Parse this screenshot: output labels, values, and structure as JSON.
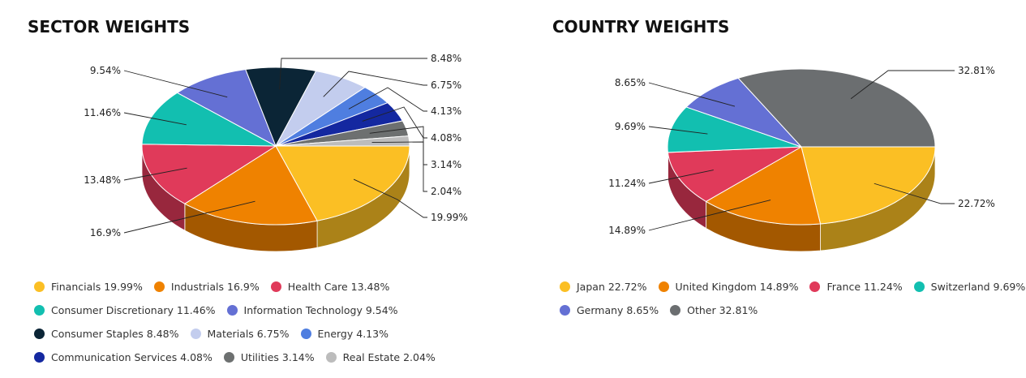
{
  "chart_data": [
    {
      "type": "pie",
      "title": "SECTOR WEIGHTS",
      "slices": [
        {
          "name": "Financials",
          "value": 19.99,
          "label": "19.99%",
          "legend": "Financials 19.99%",
          "color": "#fbbf24"
        },
        {
          "name": "Industrials",
          "value": 16.9,
          "label": "16.9%",
          "legend": "Industrials 16.9%",
          "color": "#ef8200"
        },
        {
          "name": "Health Care",
          "value": 13.48,
          "label": "13.48%",
          "legend": "Health Care 13.48%",
          "color": "#e03a5a"
        },
        {
          "name": "Consumer Discretionary",
          "value": 11.46,
          "label": "11.46%",
          "legend": "Consumer Discretionary 11.46%",
          "color": "#12bfb0"
        },
        {
          "name": "Information Technology",
          "value": 9.54,
          "label": "9.54%",
          "legend": "Information Technology 9.54%",
          "color": "#6470d4"
        },
        {
          "name": "Consumer Staples",
          "value": 8.48,
          "label": "8.48%",
          "legend": "Consumer Staples 8.48%",
          "color": "#0b2536"
        },
        {
          "name": "Materials",
          "value": 6.75,
          "label": "6.75%",
          "legend": "Materials 6.75%",
          "color": "#c3cdee"
        },
        {
          "name": "Energy",
          "value": 4.13,
          "label": "4.13%",
          "legend": "Energy 4.13%",
          "color": "#4f7ee0"
        },
        {
          "name": "Communication Services",
          "value": 4.08,
          "label": "4.08%",
          "legend": "Communication Services 4.08%",
          "color": "#1428a0"
        },
        {
          "name": "Utilities",
          "value": 3.14,
          "label": "3.14%",
          "legend": "Utilities 3.14%",
          "color": "#6d7070"
        },
        {
          "name": "Real Estate",
          "value": 2.04,
          "label": "2.04%",
          "legend": "Real Estate 2.04%",
          "color": "#bcbcbc"
        }
      ]
    },
    {
      "type": "pie",
      "title": "COUNTRY WEIGHTS",
      "slices": [
        {
          "name": "Japan",
          "value": 22.72,
          "label": "22.72%",
          "legend": "Japan 22.72%",
          "color": "#fbbf24"
        },
        {
          "name": "United Kingdom",
          "value": 14.89,
          "label": "14.89%",
          "legend": "United Kingdom 14.89%",
          "color": "#ef8200"
        },
        {
          "name": "France",
          "value": 11.24,
          "label": "11.24%",
          "legend": "France 11.24%",
          "color": "#e03a5a"
        },
        {
          "name": "Switzerland",
          "value": 9.69,
          "label": "9.69%",
          "legend": "Switzerland 9.69%",
          "color": "#12bfb0"
        },
        {
          "name": "Germany",
          "value": 8.65,
          "label": "8.65%",
          "legend": "Germany 8.65%",
          "color": "#6470d4"
        },
        {
          "name": "Other",
          "value": 32.81,
          "label": "32.81%",
          "legend": "Other 32.81%",
          "color": "#6b6e70"
        }
      ]
    }
  ]
}
